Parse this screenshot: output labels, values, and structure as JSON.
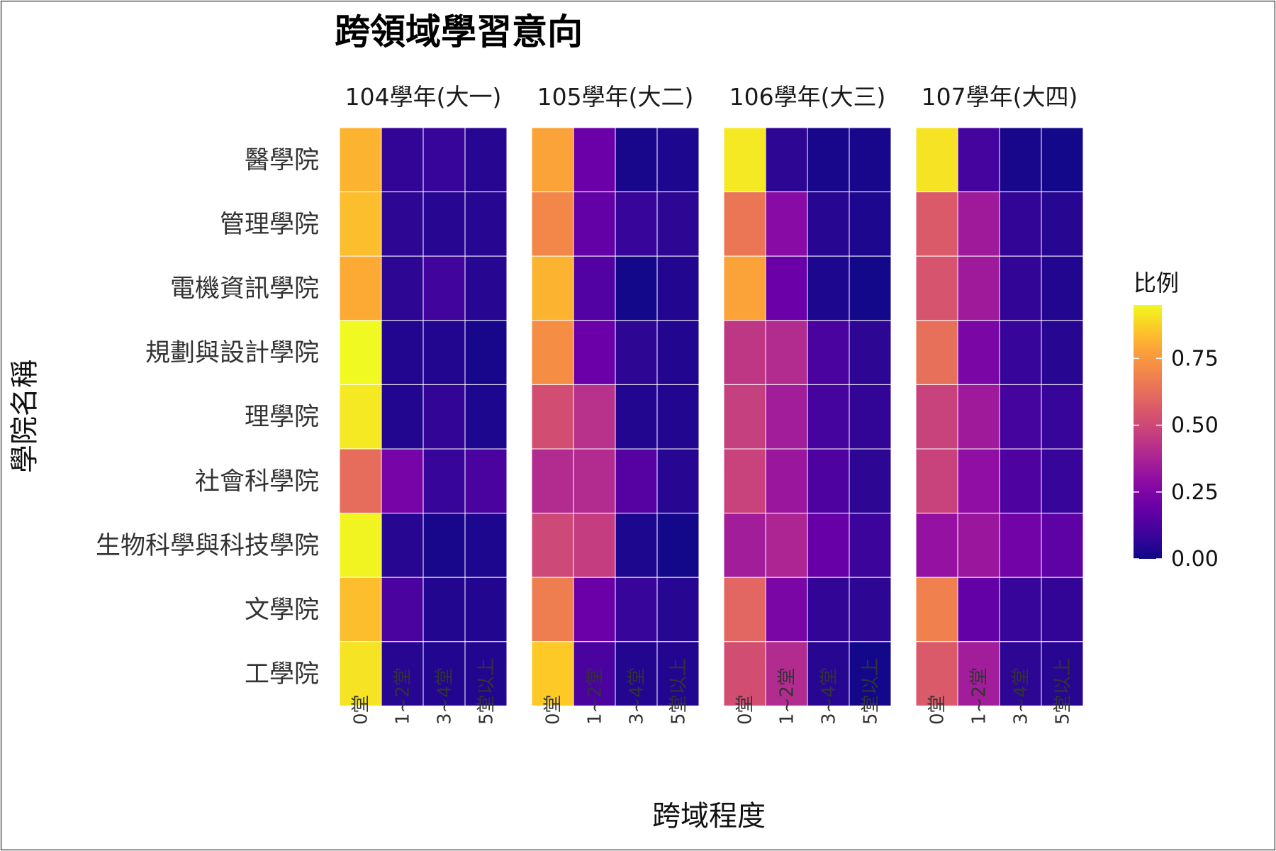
{
  "chart_data": {
    "type": "heatmap",
    "title": "跨領域學習意向",
    "xlabel": "跨域程度",
    "ylabel": "學院名稱",
    "x_categories": [
      "0堂",
      "1~2堂",
      "3~4堂",
      "5堂以上"
    ],
    "y_categories": [
      "醫學院",
      "管理學院",
      "電機資訊學院",
      "規劃與設計學院",
      "理學院",
      "社會科學院",
      "生物科學與科技學院",
      "文學院",
      "工學院"
    ],
    "legend": {
      "title": "比例",
      "position": "right",
      "ticks": [
        "0.00",
        "0.25",
        "0.50",
        "0.75"
      ],
      "range": [
        0,
        0.95
      ]
    },
    "colormap": "plasma",
    "panels": [
      {
        "name": "104學年(大一)",
        "values": [
          [
            0.82,
            0.07,
            0.08,
            0.05
          ],
          [
            0.84,
            0.06,
            0.05,
            0.05
          ],
          [
            0.8,
            0.06,
            0.1,
            0.05
          ],
          [
            0.95,
            0.04,
            0.04,
            0.02
          ],
          [
            0.92,
            0.04,
            0.07,
            0.03
          ],
          [
            0.62,
            0.23,
            0.08,
            0.12
          ],
          [
            0.94,
            0.05,
            0.02,
            0.03
          ],
          [
            0.84,
            0.12,
            0.04,
            0.04
          ],
          [
            0.91,
            0.05,
            0.04,
            0.04
          ]
        ]
      },
      {
        "name": "105學年(大二)",
        "values": [
          [
            0.78,
            0.2,
            0.02,
            0.03
          ],
          [
            0.7,
            0.18,
            0.08,
            0.06
          ],
          [
            0.82,
            0.14,
            0.01,
            0.04
          ],
          [
            0.72,
            0.2,
            0.06,
            0.04
          ],
          [
            0.52,
            0.42,
            0.04,
            0.04
          ],
          [
            0.4,
            0.4,
            0.15,
            0.05
          ],
          [
            0.5,
            0.46,
            0.03,
            0.01
          ],
          [
            0.67,
            0.2,
            0.08,
            0.05
          ],
          [
            0.86,
            0.12,
            0.04,
            0.04
          ]
        ]
      },
      {
        "name": "106學年(大三)",
        "values": [
          [
            0.92,
            0.06,
            0.02,
            0.02
          ],
          [
            0.65,
            0.28,
            0.05,
            0.03
          ],
          [
            0.78,
            0.2,
            0.03,
            0.01
          ],
          [
            0.44,
            0.4,
            0.12,
            0.06
          ],
          [
            0.47,
            0.35,
            0.11,
            0.07
          ],
          [
            0.48,
            0.33,
            0.13,
            0.06
          ],
          [
            0.35,
            0.38,
            0.19,
            0.09
          ],
          [
            0.6,
            0.24,
            0.07,
            0.06
          ],
          [
            0.52,
            0.4,
            0.05,
            0.01
          ]
        ]
      },
      {
        "name": "107學年(大四)",
        "values": [
          [
            0.91,
            0.11,
            0.02,
            0.01
          ],
          [
            0.56,
            0.34,
            0.07,
            0.05
          ],
          [
            0.54,
            0.34,
            0.07,
            0.04
          ],
          [
            0.63,
            0.24,
            0.08,
            0.05
          ],
          [
            0.48,
            0.34,
            0.11,
            0.08
          ],
          [
            0.48,
            0.3,
            0.13,
            0.08
          ],
          [
            0.31,
            0.33,
            0.22,
            0.17
          ],
          [
            0.68,
            0.18,
            0.08,
            0.07
          ],
          [
            0.56,
            0.35,
            0.06,
            0.05
          ]
        ]
      }
    ]
  }
}
